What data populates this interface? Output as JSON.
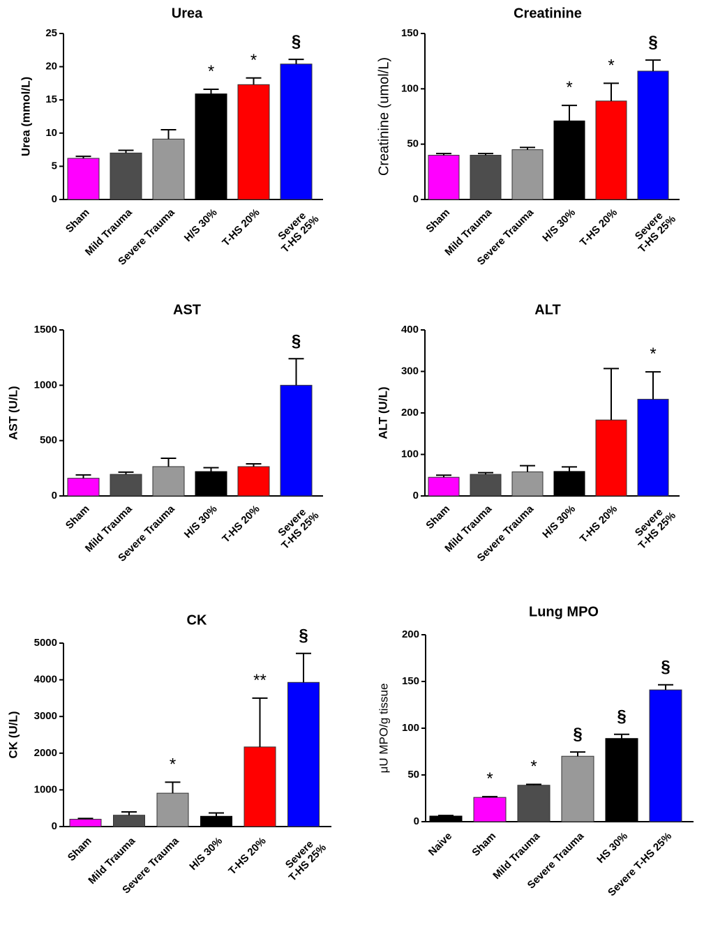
{
  "chart_data": [
    {
      "type": "bar",
      "title": "Urea",
      "ylabel": "Urea (mmol/L)",
      "ylim": [
        0,
        25
      ],
      "yticks": [
        0,
        5,
        10,
        15,
        20,
        25
      ],
      "categories": [
        "Sham",
        "Mild Trauma",
        "Severe Trauma",
        "H/S 30%",
        "T-HS 20%",
        "Severe\nT-HS 25%"
      ],
      "values": [
        6.2,
        7.0,
        9.1,
        15.9,
        17.3,
        20.4
      ],
      "errors": [
        0.3,
        0.4,
        1.4,
        0.7,
        1.0,
        0.7
      ],
      "colors": [
        "#ff00ff",
        "#4d4d4d",
        "#999999",
        "#000000",
        "#ff0000",
        "#0000ff"
      ],
      "annotations": [
        "",
        "",
        "",
        "*",
        "*",
        "§"
      ]
    },
    {
      "type": "bar",
      "title": "Creatinine",
      "ylabel": "Creatinine (umol/L)",
      "ylim": [
        0,
        150
      ],
      "yticks": [
        0,
        50,
        100,
        150
      ],
      "categories": [
        "Sham",
        "Mild Trauma",
        "Severe Trauma",
        "H/S 30%",
        "T-HS 20%",
        "Severe\nT-HS 25%"
      ],
      "values": [
        40,
        40,
        45,
        71,
        89,
        116
      ],
      "errors": [
        1.5,
        1.5,
        2,
        14,
        16,
        10
      ],
      "colors": [
        "#ff00ff",
        "#4d4d4d",
        "#999999",
        "#000000",
        "#ff0000",
        "#0000ff"
      ],
      "annotations": [
        "",
        "",
        "",
        "*",
        "*",
        "§"
      ]
    },
    {
      "type": "bar",
      "title": "AST",
      "ylabel": "AST (U/L)",
      "ylim": [
        0,
        1500
      ],
      "yticks": [
        0,
        500,
        1000,
        1500
      ],
      "categories": [
        "Sham",
        "Mild Trauma",
        "Severe Trauma",
        "H/S 30%",
        "T-HS 20%",
        "Severe\nT-HS 25%"
      ],
      "values": [
        160,
        195,
        265,
        220,
        265,
        1000
      ],
      "errors": [
        30,
        20,
        75,
        35,
        25,
        240
      ],
      "colors": [
        "#ff00ff",
        "#4d4d4d",
        "#999999",
        "#000000",
        "#ff0000",
        "#0000ff"
      ],
      "annotations": [
        "",
        "",
        "",
        "",
        "",
        "§"
      ]
    },
    {
      "type": "bar",
      "title": "ALT",
      "ylabel": "ALT (U/L)",
      "ylim": [
        0,
        400
      ],
      "yticks": [
        0,
        100,
        200,
        300,
        400
      ],
      "categories": [
        "Sham",
        "Mild Trauma",
        "Severe Trauma",
        "H/S 30%",
        "T-HS 20%",
        "Severe\nT-HS 25%"
      ],
      "values": [
        45,
        52,
        58,
        59,
        183,
        233
      ],
      "errors": [
        5,
        4,
        15,
        11,
        124,
        66
      ],
      "colors": [
        "#ff00ff",
        "#4d4d4d",
        "#999999",
        "#000000",
        "#ff0000",
        "#0000ff"
      ],
      "annotations": [
        "",
        "",
        "",
        "",
        "",
        "*"
      ]
    },
    {
      "type": "bar",
      "title": "CK",
      "ylabel": "CK (U/L)",
      "ylim": [
        0,
        5000
      ],
      "yticks": [
        0,
        1000,
        2000,
        3000,
        4000,
        5000
      ],
      "categories": [
        "Sham",
        "Mild Trauma",
        "Severe Trauma",
        "H/S 30%",
        "T-HS 20%",
        "Severe\nT-HS 25%"
      ],
      "values": [
        200,
        310,
        910,
        280,
        2170,
        3930
      ],
      "errors": [
        20,
        90,
        300,
        90,
        1330,
        790
      ],
      "colors": [
        "#ff00ff",
        "#4d4d4d",
        "#999999",
        "#000000",
        "#ff0000",
        "#0000ff"
      ],
      "annotations": [
        "",
        "",
        "*",
        "",
        "**",
        "§"
      ]
    },
    {
      "type": "bar",
      "title": "Lung MPO",
      "ylabel": "μU MPO/g tissue",
      "ylim": [
        0,
        200
      ],
      "yticks": [
        0,
        50,
        100,
        150,
        200
      ],
      "categories": [
        "Naive",
        "Sham",
        "Mild Trauma",
        "Severe Trauma",
        "HS 30%",
        "Severe T-HS 25%"
      ],
      "values": [
        6,
        26,
        39,
        70,
        89,
        141
      ],
      "errors": [
        0.6,
        0.8,
        0.9,
        4.5,
        4.5,
        5.5
      ],
      "colors": [
        "#000000",
        "#ff00ff",
        "#4d4d4d",
        "#999999",
        "#000000",
        "#0000ff"
      ],
      "annotations": [
        "",
        "*",
        "*",
        "§",
        "§",
        "§"
      ]
    }
  ]
}
